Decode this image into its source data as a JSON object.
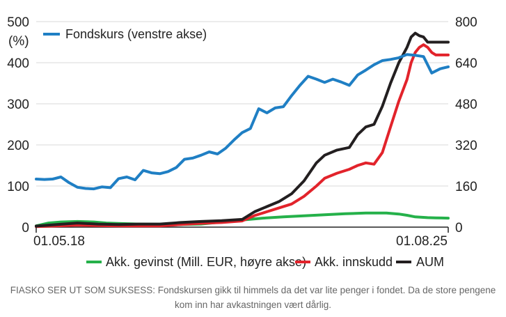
{
  "chart_data": {
    "type": "line",
    "left_axis": {
      "unit": "(%)",
      "ticks": [
        "0",
        "100",
        "200",
        "300",
        "400",
        "500"
      ],
      "range": [
        0,
        500
      ]
    },
    "right_axis": {
      "ticks": [
        "0",
        "160",
        "320",
        "480",
        "640",
        "800"
      ],
      "range": [
        0,
        800
      ]
    },
    "x_labels": [
      "01.05.18",
      "01.08.25"
    ],
    "grid": true,
    "legend": [
      {
        "name": "Fondskurs (venstre akse)",
        "color": "#1f7fc4",
        "placement": "top-left"
      },
      {
        "name": "Akk. gevinst (Mill. EUR, høyre akse)",
        "color": "#25b14a",
        "placement": "bottom"
      },
      {
        "name": "Akk. innskudd",
        "color": "#e2232b",
        "placement": "bottom"
      },
      {
        "name": "AUM",
        "color": "#231f20",
        "placement": "bottom"
      }
    ],
    "series": [
      {
        "name": "Fondskurs (venstre akse)",
        "axis": "left",
        "color": "#1f7fc4",
        "t": [
          0,
          0.02,
          0.04,
          0.06,
          0.08,
          0.1,
          0.12,
          0.14,
          0.16,
          0.18,
          0.2,
          0.22,
          0.24,
          0.26,
          0.28,
          0.3,
          0.32,
          0.34,
          0.36,
          0.38,
          0.4,
          0.42,
          0.44,
          0.46,
          0.48,
          0.5,
          0.52,
          0.54,
          0.56,
          0.58,
          0.6,
          0.62,
          0.64,
          0.66,
          0.68,
          0.7,
          0.72,
          0.74,
          0.76,
          0.78,
          0.8,
          0.82,
          0.84,
          0.86,
          0.88,
          0.9,
          0.92,
          0.94,
          0.96,
          0.98,
          1.0
        ],
        "values": [
          117,
          116,
          117,
          122,
          108,
          97,
          94,
          93,
          98,
          96,
          118,
          122,
          115,
          138,
          132,
          130,
          135,
          145,
          165,
          168,
          175,
          183,
          178,
          192,
          212,
          230,
          240,
          288,
          278,
          290,
          293,
          320,
          345,
          367,
          360,
          352,
          360,
          353,
          345,
          370,
          382,
          395,
          405,
          408,
          412,
          420,
          418,
          415,
          375,
          385,
          390
        ]
      },
      {
        "name": "Akk. gevinst (Mill. EUR, høyre akse)",
        "axis": "right",
        "color": "#25b14a",
        "t": [
          0,
          0.03,
          0.06,
          0.1,
          0.14,
          0.17,
          0.2,
          0.25,
          0.3,
          0.35,
          0.4,
          0.45,
          0.5,
          0.55,
          0.6,
          0.65,
          0.7,
          0.75,
          0.8,
          0.85,
          0.88,
          0.9,
          0.92,
          0.95,
          0.97,
          1.0
        ],
        "values": [
          5,
          16,
          20,
          22,
          20,
          16,
          14,
          12,
          11,
          10,
          12,
          20,
          28,
          35,
          40,
          44,
          48,
          52,
          55,
          55,
          51,
          46,
          40,
          37,
          36,
          35
        ]
      },
      {
        "name": "Akk. innskudd",
        "axis": "right",
        "color": "#e2232b",
        "t": [
          0,
          0.05,
          0.1,
          0.15,
          0.2,
          0.25,
          0.3,
          0.35,
          0.4,
          0.45,
          0.5,
          0.53,
          0.56,
          0.59,
          0.62,
          0.65,
          0.68,
          0.7,
          0.73,
          0.76,
          0.78,
          0.8,
          0.82,
          0.84,
          0.86,
          0.88,
          0.9,
          0.91,
          0.92,
          0.93,
          0.94,
          0.95,
          0.96,
          0.97,
          0.98,
          1.0
        ],
        "values": [
          2,
          5,
          8,
          6,
          5,
          5,
          5,
          10,
          15,
          18,
          24,
          45,
          60,
          75,
          90,
          120,
          160,
          190,
          210,
          225,
          240,
          250,
          245,
          290,
          390,
          490,
          575,
          640,
          680,
          700,
          710,
          700,
          680,
          670,
          670,
          670
        ]
      },
      {
        "name": "AUM",
        "axis": "right",
        "color": "#231f20",
        "t": [
          0,
          0.05,
          0.1,
          0.15,
          0.2,
          0.25,
          0.3,
          0.35,
          0.4,
          0.45,
          0.5,
          0.53,
          0.56,
          0.59,
          0.62,
          0.65,
          0.68,
          0.7,
          0.73,
          0.76,
          0.78,
          0.8,
          0.82,
          0.84,
          0.86,
          0.88,
          0.9,
          0.91,
          0.92,
          0.93,
          0.94,
          0.95,
          0.97,
          1.0
        ],
        "values": [
          4,
          10,
          16,
          12,
          10,
          12,
          12,
          18,
          22,
          25,
          30,
          60,
          80,
          100,
          130,
          180,
          250,
          280,
          300,
          310,
          360,
          390,
          400,
          470,
          560,
          640,
          700,
          740,
          755,
          745,
          740,
          720,
          720,
          720
        ]
      }
    ]
  },
  "caption": "FIASKO SER UT SOM SUKSESS: Fondskursen gikk til himmels da det var lite penger i fondet. Da de store pengene kom inn har avkastningen vært dårlig."
}
